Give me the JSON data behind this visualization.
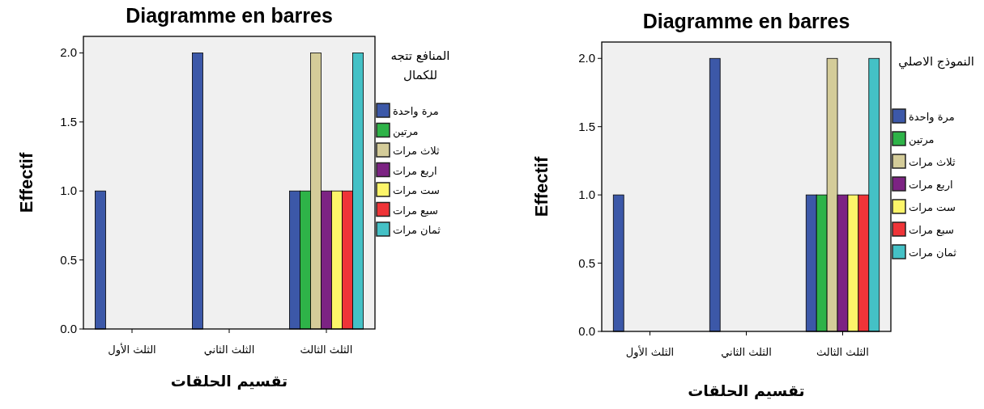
{
  "chart_data": [
    {
      "type": "bar",
      "title": "Diagramme en barres",
      "xlabel": "تقسيم الحلقات",
      "ylabel": "Effectif",
      "legend_title": "المنافع تتجه للكمال",
      "legend": "right",
      "categories": [
        "الثلث الأول",
        "الثلث الثاني",
        "الثلث الثالث"
      ],
      "ylim": [
        0,
        2.12
      ],
      "yticks": [
        {
          "value": 0,
          "label": "0.0"
        },
        {
          "value": 0.5,
          "label": "0.5"
        },
        {
          "value": 1,
          "label": "1.0"
        },
        {
          "value": 1.5,
          "label": "1.5"
        },
        {
          "value": 2,
          "label": "2.0"
        }
      ],
      "series": [
        {
          "name": "مرة واحدة",
          "color": "#3c58a8",
          "values": [
            1,
            2,
            1
          ]
        },
        {
          "name": "مرتين",
          "color": "#2eb348",
          "values": [
            null,
            null,
            1
          ]
        },
        {
          "name": "ثلاث مرات",
          "color": "#d4cc99",
          "values": [
            null,
            null,
            2
          ]
        },
        {
          "name": "اربع مرات",
          "color": "#7c2383",
          "values": [
            null,
            null,
            1
          ]
        },
        {
          "name": "ست مرات",
          "color": "#fdf569",
          "values": [
            null,
            null,
            1
          ]
        },
        {
          "name": "سبع مرات",
          "color": "#ef3438",
          "values": [
            null,
            null,
            1
          ]
        },
        {
          "name": "ثمان مرات",
          "color": "#44c1c6",
          "values": [
            null,
            null,
            2
          ]
        }
      ]
    },
    {
      "type": "bar",
      "title": "Diagramme en barres",
      "xlabel": "تقسيم الحلقات",
      "ylabel": "Effectif",
      "legend_title": "النموذج الاصلي",
      "legend": "right",
      "categories": [
        "الثلث الأول",
        "الثلث الثاني",
        "الثلث الثالث"
      ],
      "ylim": [
        0,
        2.12
      ],
      "yticks": [
        {
          "value": 0,
          "label": "0.0"
        },
        {
          "value": 0.5,
          "label": "0.5"
        },
        {
          "value": 1,
          "label": "1.0"
        },
        {
          "value": 1.5,
          "label": "1.5"
        },
        {
          "value": 2,
          "label": "2.0"
        }
      ],
      "series": [
        {
          "name": "مرة واحدة",
          "color": "#3c58a8",
          "values": [
            1,
            2,
            1
          ]
        },
        {
          "name": "مرتين",
          "color": "#2eb348",
          "values": [
            null,
            null,
            1
          ]
        },
        {
          "name": "ثلاث مرات",
          "color": "#d4cc99",
          "values": [
            null,
            null,
            2
          ]
        },
        {
          "name": "اربع مرات",
          "color": "#7c2383",
          "values": [
            null,
            null,
            1
          ]
        },
        {
          "name": "ست مرات",
          "color": "#fdf569",
          "values": [
            null,
            null,
            1
          ]
        },
        {
          "name": "سبع مرات",
          "color": "#ef3438",
          "values": [
            null,
            null,
            1
          ]
        },
        {
          "name": "ثمان مرات",
          "color": "#44c1c6",
          "values": [
            null,
            null,
            2
          ]
        }
      ]
    }
  ]
}
